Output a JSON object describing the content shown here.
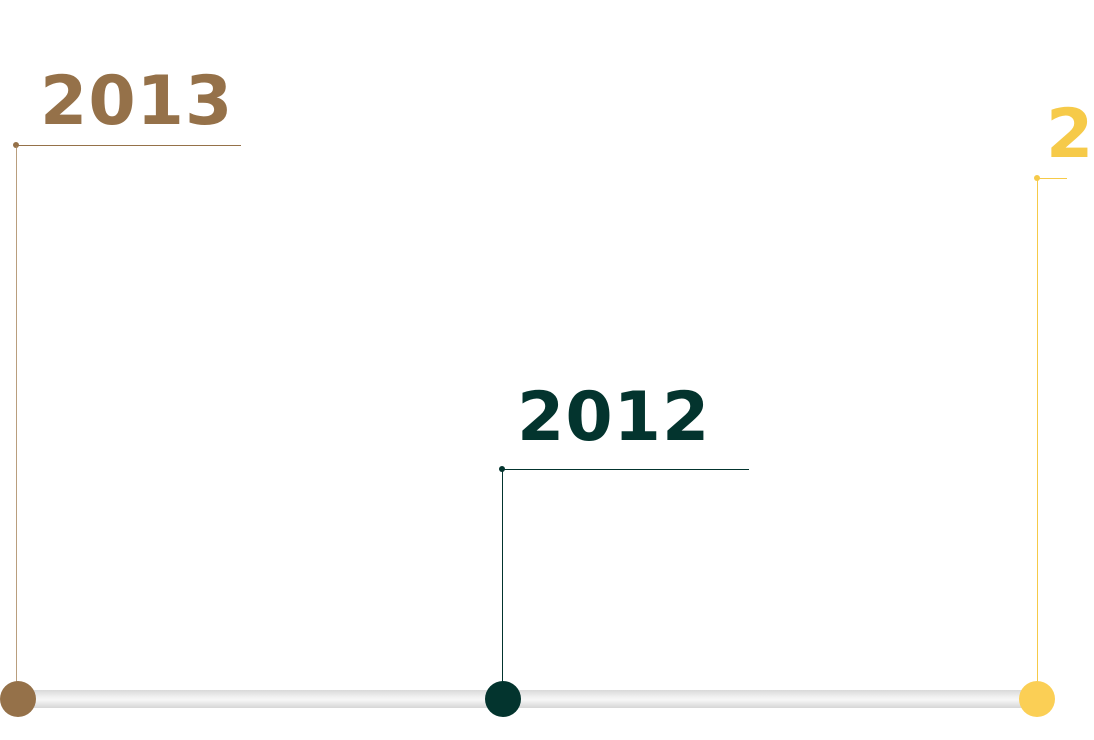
{
  "timeline": {
    "colors": {
      "brown": "#957149",
      "dark_green": "#03342e",
      "yellow": "#f6ca49",
      "track": "#dddddd"
    },
    "milestones": [
      {
        "year": "2013",
        "color": "#957149"
      },
      {
        "year": "2012",
        "color": "#03342e"
      },
      {
        "year": "2",
        "color": "#f6ca49"
      }
    ]
  }
}
